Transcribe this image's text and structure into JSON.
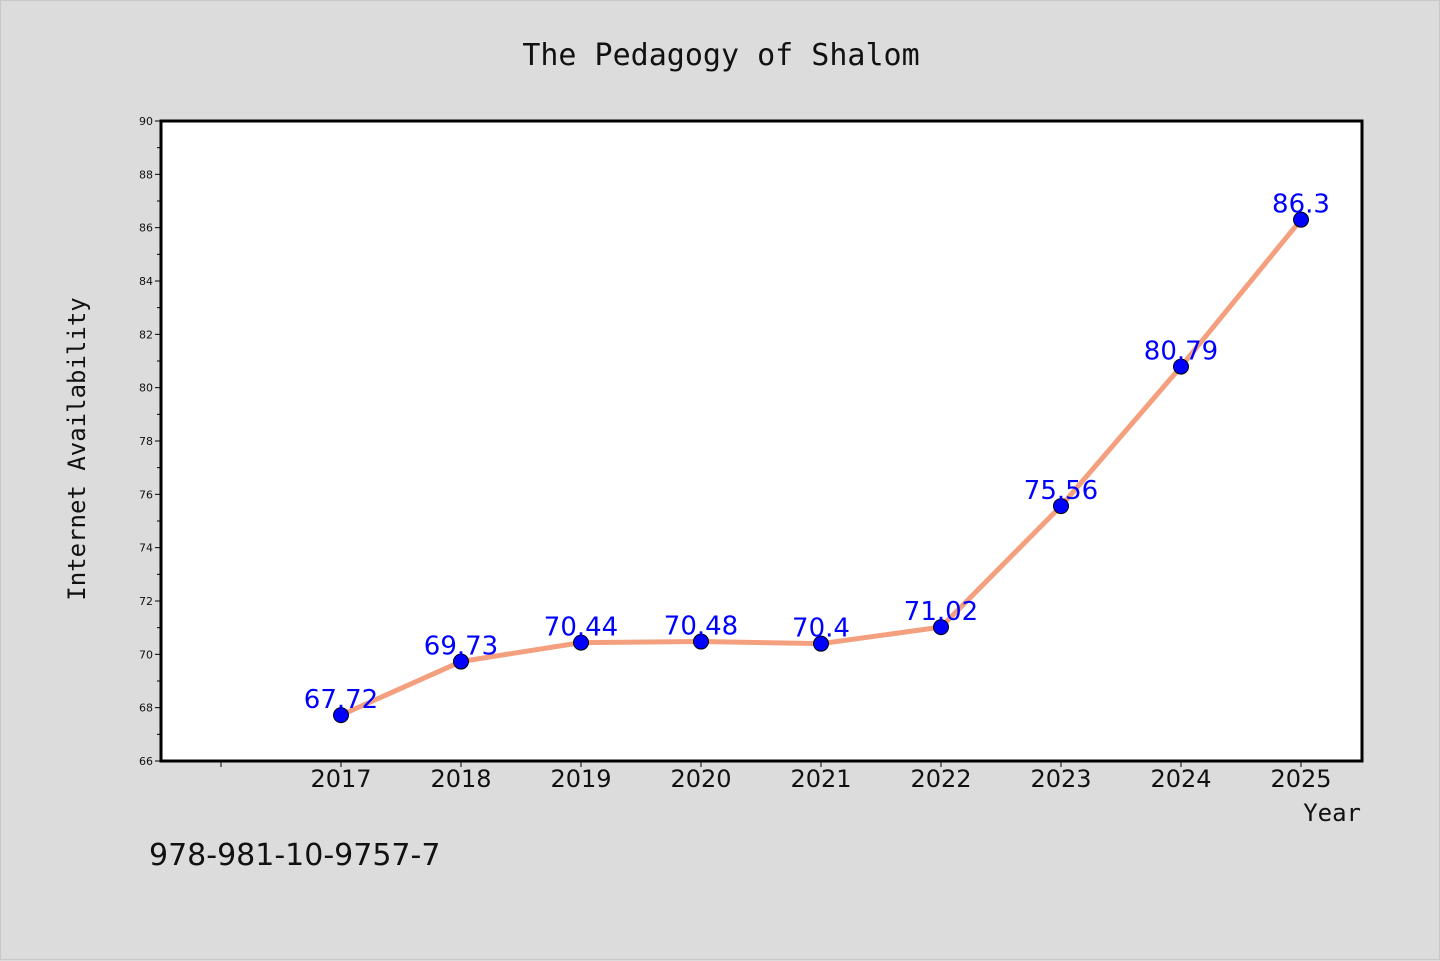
{
  "chart_data": {
    "type": "line",
    "title": "The Pedagogy of Shalom",
    "xlabel": "Year",
    "ylabel": "Internet Availability",
    "categories": [
      "2017",
      "2018",
      "2019",
      "2020",
      "2021",
      "2022",
      "2023",
      "2024",
      "2025"
    ],
    "values": [
      67.72,
      69.73,
      70.44,
      70.48,
      70.4,
      71.02,
      75.56,
      80.79,
      86.3
    ],
    "data_labels": [
      "67.72",
      "69.73",
      "70.44",
      "70.48",
      "70.4",
      "71.02",
      "75.56",
      "80.79",
      "86.3"
    ],
    "ylim": [
      66,
      90
    ],
    "yticks": [
      "66",
      "68",
      "70",
      "72",
      "74",
      "76",
      "78",
      "80",
      "82",
      "84",
      "86",
      "88",
      "90"
    ],
    "grid": false,
    "legend": "none",
    "line_color": "#f4a07e",
    "marker_color": "#0000ff",
    "label_color": "#0000ff",
    "background_color": "#dcdcdc",
    "plot_background_color": "#ffffff"
  },
  "footer": {
    "isbn": "978-981-10-9757-7"
  }
}
